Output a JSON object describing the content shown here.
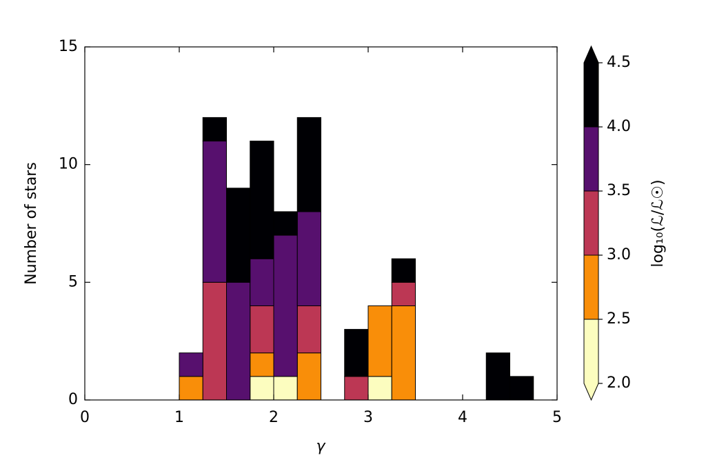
{
  "chart_data": {
    "type": "stacked_histogram",
    "xlabel": "γ",
    "ylabel": "Number of stars",
    "bins": [
      1.0,
      1.25,
      1.5,
      1.75,
      2.0,
      2.25,
      2.5,
      2.75,
      3.0,
      3.25,
      3.5,
      3.75,
      4.0,
      4.25,
      4.5,
      4.75
    ],
    "series": [
      {
        "color": "#fcfdbf",
        "values": [
          0,
          0,
          0,
          1,
          1,
          0,
          0,
          0,
          1,
          0,
          0,
          0,
          0,
          0,
          0
        ]
      },
      {
        "color": "#f98e09",
        "values": [
          1,
          0,
          0,
          1,
          0,
          2,
          0,
          0,
          3,
          4,
          0,
          0,
          0,
          0,
          0
        ]
      },
      {
        "color": "#bc3754",
        "values": [
          0,
          5,
          0,
          2,
          0,
          2,
          0,
          1,
          0,
          1,
          0,
          0,
          0,
          0,
          0
        ]
      },
      {
        "color": "#57106e",
        "values": [
          1,
          6,
          5,
          2,
          6,
          4,
          0,
          0,
          0,
          0,
          0,
          0,
          0,
          0,
          0
        ]
      },
      {
        "color": "#000004",
        "values": [
          0,
          1,
          4,
          5,
          1,
          4,
          0,
          2,
          0,
          1,
          0,
          0,
          0,
          2,
          1
        ]
      }
    ],
    "xlim": [
      0,
      5
    ],
    "xticks": [
      0,
      1,
      2,
      3,
      4,
      5
    ],
    "ylim": [
      0,
      15
    ],
    "yticks": [
      0,
      5,
      10,
      15
    ],
    "colorbar": {
      "label": "log₁₀(ℒ/ℒ☉)",
      "lim": [
        2.0,
        4.5
      ],
      "ticks": [
        {
          "value": 2.0,
          "label": "2.0"
        },
        {
          "value": 2.5,
          "label": "2.5"
        },
        {
          "value": 3.0,
          "label": "3.0"
        },
        {
          "value": 3.5,
          "label": "3.5"
        },
        {
          "value": 4.0,
          "label": "4.0"
        },
        {
          "value": 4.5,
          "label": "4.5"
        }
      ],
      "extend": "both"
    }
  }
}
